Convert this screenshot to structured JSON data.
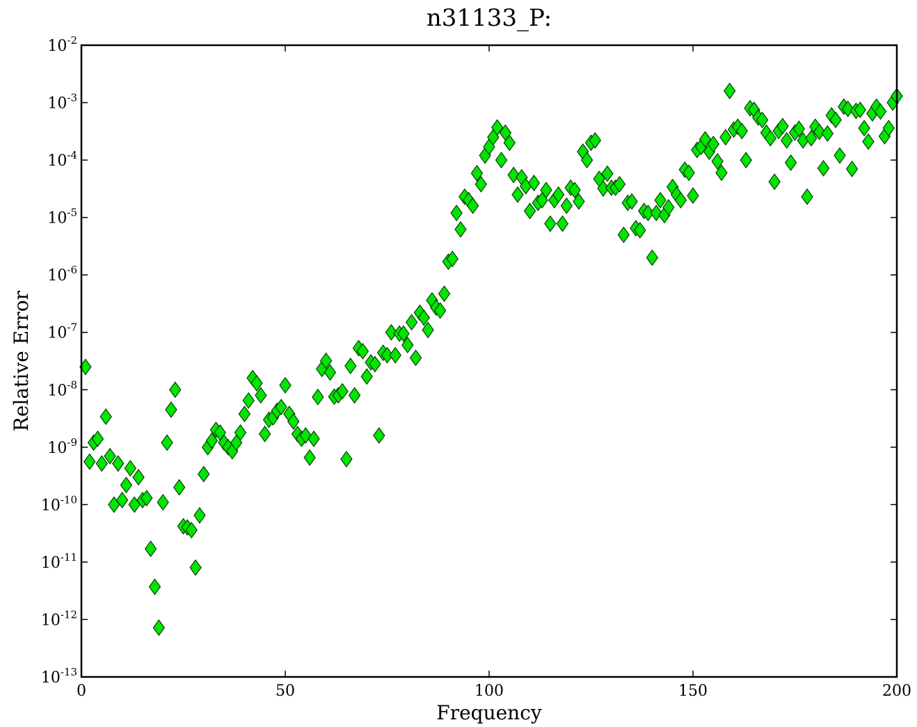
{
  "chart_data": {
    "type": "scatter",
    "title": "n31133_P:",
    "xlabel": "Frequency",
    "ylabel": "Relative Error",
    "xlim": [
      0,
      200
    ],
    "ylim": [
      1e-13,
      0.01
    ],
    "yscale": "log",
    "grid": false,
    "marker": "diamond",
    "marker_color": "#00e600",
    "xticks": [
      {
        "value": 0,
        "label": "0"
      },
      {
        "value": 50,
        "label": "50"
      },
      {
        "value": 100,
        "label": "100"
      },
      {
        "value": 150,
        "label": "150"
      },
      {
        "value": 200,
        "label": "200"
      }
    ],
    "yticks": [
      {
        "exp": -13,
        "base": "10",
        "sup": "-13"
      },
      {
        "exp": -12,
        "base": "10",
        "sup": "-12"
      },
      {
        "exp": -11,
        "base": "10",
        "sup": "-11"
      },
      {
        "exp": -10,
        "base": "10",
        "sup": "-10"
      },
      {
        "exp": -9,
        "base": "10",
        "sup": "-9"
      },
      {
        "exp": -8,
        "base": "10",
        "sup": "-8"
      },
      {
        "exp": -7,
        "base": "10",
        "sup": "-7"
      },
      {
        "exp": -6,
        "base": "10",
        "sup": "-6"
      },
      {
        "exp": -5,
        "base": "10",
        "sup": "-5"
      },
      {
        "exp": -4,
        "base": "10",
        "sup": "-4"
      },
      {
        "exp": -3,
        "base": "10",
        "sup": "-3"
      },
      {
        "exp": -2,
        "base": "10",
        "sup": "-2"
      }
    ],
    "points": [
      [
        1,
        2.5e-08
      ],
      [
        2,
        5.6e-10
      ],
      [
        3,
        1.2e-09
      ],
      [
        4,
        1.4e-09
      ],
      [
        5,
        5.2e-10
      ],
      [
        6,
        3.4e-09
      ],
      [
        7,
        7e-10
      ],
      [
        8,
        1e-10
      ],
      [
        9,
        5.2e-10
      ],
      [
        10,
        1.2e-10
      ],
      [
        11,
        2.2e-10
      ],
      [
        12,
        4.3e-10
      ],
      [
        13,
        1e-10
      ],
      [
        14,
        3e-10
      ],
      [
        15,
        1.2e-10
      ],
      [
        16,
        1.3e-10
      ],
      [
        17,
        1.7e-11
      ],
      [
        18,
        3.7e-12
      ],
      [
        19,
        7.2e-13
      ],
      [
        20,
        1.1e-10
      ],
      [
        21,
        1.2e-09
      ],
      [
        22,
        4.5e-09
      ],
      [
        23,
        1e-08
      ],
      [
        24,
        2e-10
      ],
      [
        25,
        4.2e-11
      ],
      [
        26,
        4e-11
      ],
      [
        27,
        3.6e-11
      ],
      [
        28,
        8e-12
      ],
      [
        29,
        6.5e-11
      ],
      [
        30,
        3.4e-10
      ],
      [
        31,
        1e-09
      ],
      [
        32,
        1.3e-09
      ],
      [
        33,
        2e-09
      ],
      [
        34,
        1.8e-09
      ],
      [
        35,
        1.2e-09
      ],
      [
        36,
        1e-09
      ],
      [
        37,
        8.5e-10
      ],
      [
        38,
        1.2e-09
      ],
      [
        39,
        1.8e-09
      ],
      [
        40,
        3.8e-09
      ],
      [
        41,
        6.5e-09
      ],
      [
        42,
        1.6e-08
      ],
      [
        43,
        1.3e-08
      ],
      [
        44,
        8e-09
      ],
      [
        45,
        1.7e-09
      ],
      [
        46,
        3e-09
      ],
      [
        47,
        3.3e-09
      ],
      [
        48,
        4.3e-09
      ],
      [
        49,
        5e-09
      ],
      [
        50,
        1.2e-08
      ],
      [
        51,
        3.8e-09
      ],
      [
        52,
        2.8e-09
      ],
      [
        53,
        1.7e-09
      ],
      [
        54,
        1.4e-09
      ],
      [
        55,
        1.6e-09
      ],
      [
        56,
        6.6e-10
      ],
      [
        57,
        1.4e-09
      ],
      [
        58,
        7.5e-09
      ],
      [
        59,
        2.3e-08
      ],
      [
        60,
        3.2e-08
      ],
      [
        61,
        2e-08
      ],
      [
        62,
        7.6e-09
      ],
      [
        63,
        8e-09
      ],
      [
        64,
        9.4e-09
      ],
      [
        65,
        6.2e-10
      ],
      [
        66,
        2.6e-08
      ],
      [
        67,
        8e-09
      ],
      [
        68,
        5.3e-08
      ],
      [
        69,
        4.7e-08
      ],
      [
        70,
        1.7e-08
      ],
      [
        71,
        3e-08
      ],
      [
        72,
        2.8e-08
      ],
      [
        73,
        1.6e-09
      ],
      [
        74,
        4.4e-08
      ],
      [
        75,
        4e-08
      ],
      [
        76,
        1e-07
      ],
      [
        77,
        4e-08
      ],
      [
        78,
        9.5e-08
      ],
      [
        79,
        9.5e-08
      ],
      [
        80,
        6e-08
      ],
      [
        81,
        1.5e-07
      ],
      [
        82,
        3.6e-08
      ],
      [
        83,
        2.2e-07
      ],
      [
        84,
        1.8e-07
      ],
      [
        85,
        1.1e-07
      ],
      [
        86,
        3.6e-07
      ],
      [
        87,
        2.7e-07
      ],
      [
        88,
        2.4e-07
      ],
      [
        89,
        4.7e-07
      ],
      [
        90,
        1.7e-06
      ],
      [
        91,
        1.9e-06
      ],
      [
        92,
        1.2e-05
      ],
      [
        93,
        6.2e-06
      ],
      [
        94,
        2.3e-05
      ],
      [
        95,
        2e-05
      ],
      [
        96,
        1.6e-05
      ],
      [
        97,
        5.9e-05
      ],
      [
        98,
        3.8e-05
      ],
      [
        99,
        0.00012
      ],
      [
        100,
        0.00017
      ],
      [
        101,
        0.00025
      ],
      [
        102,
        0.00037
      ],
      [
        103,
        0.0001
      ],
      [
        104,
        0.0003
      ],
      [
        105,
        0.0002
      ],
      [
        106,
        5.5e-05
      ],
      [
        107,
        2.5e-05
      ],
      [
        108,
        5e-05
      ],
      [
        109,
        3.5e-05
      ],
      [
        110,
        1.3e-05
      ],
      [
        111,
        4e-05
      ],
      [
        112,
        1.8e-05
      ],
      [
        113,
        2e-05
      ],
      [
        114,
        3e-05
      ],
      [
        115,
        7.8e-06
      ],
      [
        116,
        2e-05
      ],
      [
        117,
        2.5e-05
      ],
      [
        118,
        7.8e-06
      ],
      [
        119,
        1.6e-05
      ],
      [
        120,
        3.3e-05
      ],
      [
        121,
        3e-05
      ],
      [
        122,
        1.9e-05
      ],
      [
        123,
        0.00014
      ],
      [
        124,
        0.0001
      ],
      [
        125,
        0.0002
      ],
      [
        126,
        0.00022
      ],
      [
        127,
        4.7e-05
      ],
      [
        128,
        3.2e-05
      ],
      [
        129,
        5.8e-05
      ],
      [
        130,
        3.3e-05
      ],
      [
        131,
        3.3e-05
      ],
      [
        132,
        3.8e-05
      ],
      [
        133,
        5e-06
      ],
      [
        134,
        1.8e-05
      ],
      [
        135,
        1.9e-05
      ],
      [
        136,
        6.5e-06
      ],
      [
        137,
        6e-06
      ],
      [
        138,
        1.3e-05
      ],
      [
        139,
        1.2e-05
      ],
      [
        140,
        2e-06
      ],
      [
        141,
        1.2e-05
      ],
      [
        142,
        2e-05
      ],
      [
        143,
        1.1e-05
      ],
      [
        144,
        1.5e-05
      ],
      [
        145,
        3.4e-05
      ],
      [
        146,
        2.5e-05
      ],
      [
        147,
        2e-05
      ],
      [
        148,
        6.8e-05
      ],
      [
        149,
        6e-05
      ],
      [
        150,
        2.4e-05
      ],
      [
        151,
        0.00015
      ],
      [
        152,
        0.00017
      ],
      [
        153,
        0.00023
      ],
      [
        154,
        0.00014
      ],
      [
        155,
        0.00019
      ],
      [
        156,
        9.5e-05
      ],
      [
        157,
        6e-05
      ],
      [
        158,
        0.00025
      ],
      [
        159,
        0.0016
      ],
      [
        160,
        0.00034
      ],
      [
        161,
        0.00038
      ],
      [
        162,
        0.00032
      ],
      [
        163,
        0.0001
      ],
      [
        164,
        0.0008
      ],
      [
        165,
        0.00075
      ],
      [
        166,
        0.00055
      ],
      [
        167,
        0.0005
      ],
      [
        168,
        0.0003
      ],
      [
        169,
        0.00024
      ],
      [
        170,
        4.2e-05
      ],
      [
        171,
        0.00032
      ],
      [
        172,
        0.00039
      ],
      [
        173,
        0.00022
      ],
      [
        174,
        9e-05
      ],
      [
        175,
        0.0003
      ],
      [
        176,
        0.00035
      ],
      [
        177,
        0.00022
      ],
      [
        178,
        2.3e-05
      ],
      [
        179,
        0.00024
      ],
      [
        180,
        0.00038
      ],
      [
        181,
        0.00031
      ],
      [
        182,
        7.2e-05
      ],
      [
        183,
        0.00029
      ],
      [
        184,
        0.0006
      ],
      [
        185,
        0.0005
      ],
      [
        186,
        0.00012
      ],
      [
        187,
        0.00085
      ],
      [
        188,
        0.00078
      ],
      [
        189,
        7e-05
      ],
      [
        190,
        0.00072
      ],
      [
        191,
        0.00075
      ],
      [
        192,
        0.00036
      ],
      [
        193,
        0.00021
      ],
      [
        194,
        0.00065
      ],
      [
        195,
        0.00085
      ],
      [
        196,
        0.0007
      ],
      [
        197,
        0.00026
      ],
      [
        198,
        0.00036
      ],
      [
        199,
        0.001
      ],
      [
        200,
        0.0013
      ]
    ]
  }
}
